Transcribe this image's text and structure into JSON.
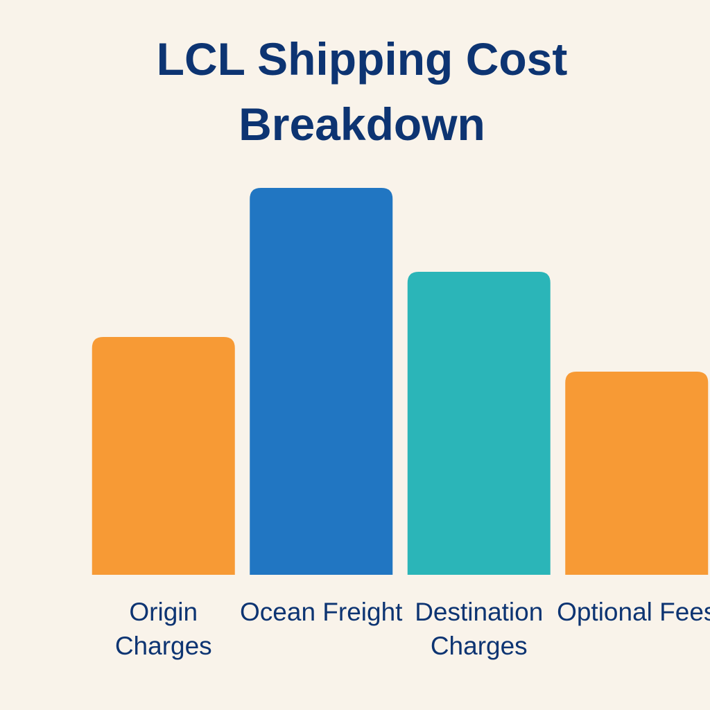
{
  "chart_data": {
    "type": "bar",
    "title": "LCL Shipping Cost Breakdown",
    "categories": [
      "Origin Charges",
      "Ocean Freight",
      "Destination Charges",
      "Optional Fees"
    ],
    "values": [
      343,
      558,
      437,
      293
    ],
    "colors": [
      "#f79a35",
      "#2176c2",
      "#2bb5b8",
      "#f79a35"
    ],
    "ylim": [
      0,
      600
    ]
  }
}
